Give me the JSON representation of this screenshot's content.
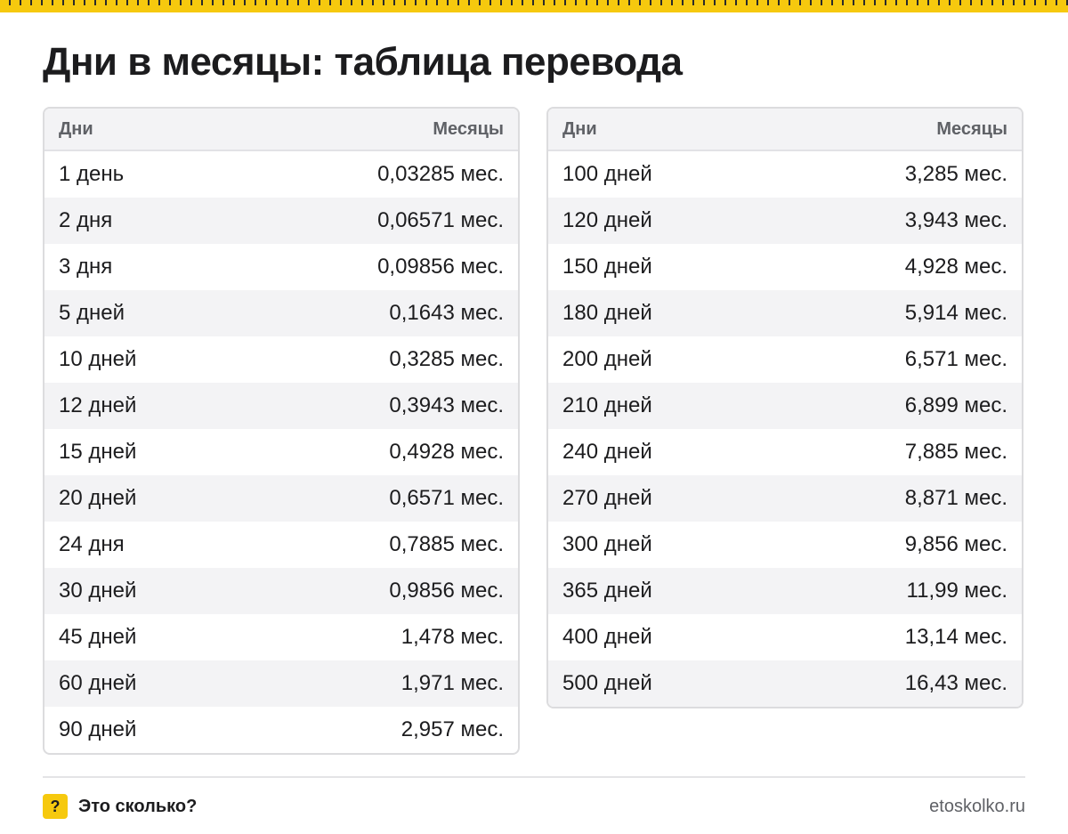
{
  "title": "Дни в месяцы: таблица перевода",
  "columns": {
    "days": "Дни",
    "months": "Месяцы"
  },
  "left_table": [
    {
      "days": "1 день",
      "months": "0,03285 мес."
    },
    {
      "days": "2 дня",
      "months": "0,06571 мес."
    },
    {
      "days": "3 дня",
      "months": "0,09856 мес."
    },
    {
      "days": "5 дней",
      "months": "0,1643 мес."
    },
    {
      "days": "10 дней",
      "months": "0,3285 мес."
    },
    {
      "days": "12 дней",
      "months": "0,3943 мес."
    },
    {
      "days": "15 дней",
      "months": "0,4928 мес."
    },
    {
      "days": "20 дней",
      "months": "0,6571 мес."
    },
    {
      "days": "24 дня",
      "months": "0,7885 мес."
    },
    {
      "days": "30 дней",
      "months": "0,9856 мес."
    },
    {
      "days": "45 дней",
      "months": "1,478 мес."
    },
    {
      "days": "60 дней",
      "months": "1,971 мес."
    },
    {
      "days": "90 дней",
      "months": "2,957 мес."
    }
  ],
  "right_table": [
    {
      "days": "100 дней",
      "months": "3,285 мес."
    },
    {
      "days": "120 дней",
      "months": "3,943 мес."
    },
    {
      "days": "150 дней",
      "months": "4,928 мес."
    },
    {
      "days": "180 дней",
      "months": "5,914 мес."
    },
    {
      "days": "200 дней",
      "months": "6,571 мес."
    },
    {
      "days": "210 дней",
      "months": "6,899 мес."
    },
    {
      "days": "240 дней",
      "months": "7,885 мес."
    },
    {
      "days": "270 дней",
      "months": "8,871 мес."
    },
    {
      "days": "300 дней",
      "months": "9,856 мес."
    },
    {
      "days": "365 дней",
      "months": "11,99 мес."
    },
    {
      "days": "400 дней",
      "months": "13,14 мес."
    },
    {
      "days": "500 дней",
      "months": "16,43 мес."
    }
  ],
  "footer": {
    "badge": "?",
    "brand": "Это сколько?",
    "site": "etoskolko.ru"
  },
  "colors": {
    "accent": "#f6c90e",
    "text": "#1c1c1e",
    "muted": "#5f6166",
    "stripe": "#f3f3f5",
    "border": "#dcdcde"
  }
}
